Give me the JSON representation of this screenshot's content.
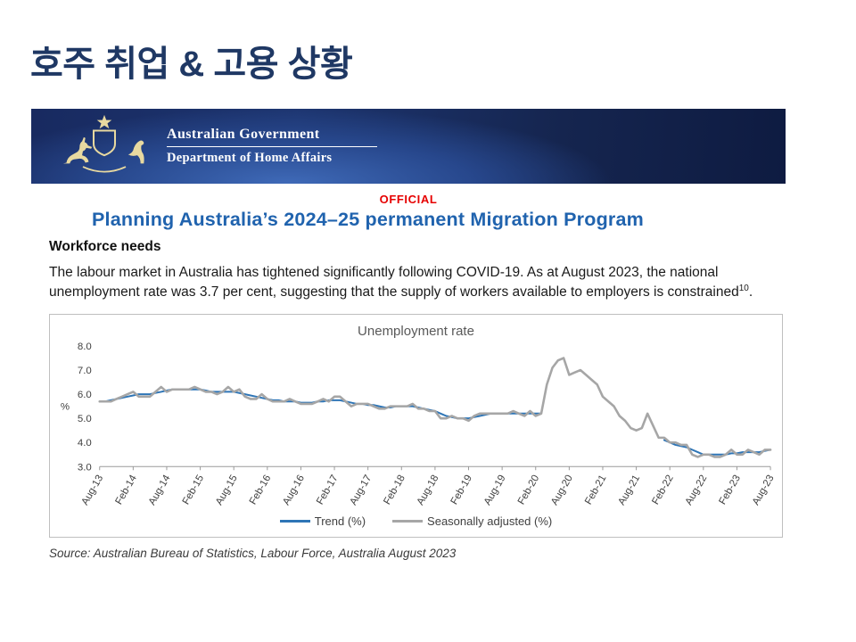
{
  "colors": {
    "title_navy": "#1F3864",
    "heading_blue": "#2063AE",
    "official_red": "#E60000",
    "banner_navy": "#16255A"
  },
  "page": {
    "title": "호주 취업 & 고용 상황"
  },
  "banner": {
    "gov_title": "Australian Government",
    "dept_title": "Department of Home Affairs"
  },
  "doc": {
    "official_label": "OFFICIAL",
    "heading": "Planning Australia’s 2024–25 permanent Migration Program",
    "subheading": "Workforce needs",
    "body": "The labour market in Australia has tightened significantly following COVID-19. As at August 2023, the national unemployment rate was 3.7 per cent, suggesting that the supply of workers available to employers is constrained",
    "footnote_marker": "10",
    "body_end": ".",
    "source": "Source: Australian Bureau of Statistics, Labour Force, Australia August 2023"
  },
  "chart_data": {
    "type": "line",
    "title": "Unemployment rate",
    "ylabel": "%",
    "ylim": [
      3.0,
      8.0
    ],
    "yticks": [
      3,
      4,
      5,
      6,
      7,
      8
    ],
    "grid": false,
    "legend_position": "bottom",
    "x_unit": "month",
    "tick_every_months": 6,
    "tick_labels": [
      "Aug-13",
      "Feb-14",
      "Aug-14",
      "Feb-15",
      "Aug-15",
      "Feb-16",
      "Aug-16",
      "Feb-17",
      "Aug-17",
      "Feb-18",
      "Aug-18",
      "Feb-19",
      "Aug-19",
      "Feb-20",
      "Aug-20",
      "Feb-21",
      "Aug-21",
      "Feb-22",
      "Aug-22",
      "Feb-23",
      "Aug-23"
    ],
    "series": [
      {
        "name": "Trend (%)",
        "color": "#2E75B6",
        "width": 2,
        "values": [
          5.7,
          5.7,
          5.75,
          5.8,
          5.85,
          5.9,
          5.95,
          6.0,
          6.0,
          6.0,
          6.05,
          6.1,
          6.15,
          6.2,
          6.2,
          6.2,
          6.2,
          6.2,
          6.2,
          6.15,
          6.1,
          6.1,
          6.1,
          6.1,
          6.1,
          6.05,
          6.0,
          5.95,
          5.9,
          5.85,
          5.8,
          5.75,
          5.75,
          5.7,
          5.7,
          5.7,
          5.65,
          5.65,
          5.65,
          5.7,
          5.7,
          5.75,
          5.75,
          5.75,
          5.7,
          5.65,
          5.6,
          5.6,
          5.55,
          5.55,
          5.5,
          5.45,
          5.45,
          5.5,
          5.5,
          5.5,
          5.5,
          5.45,
          5.4,
          5.35,
          5.3,
          5.2,
          5.1,
          5.05,
          5.0,
          5.0,
          5.0,
          5.05,
          5.1,
          5.15,
          5.2,
          5.2,
          5.2,
          5.2,
          5.2,
          5.2,
          5.2,
          5.2,
          5.2,
          5.2,
          null,
          null,
          null,
          null,
          null,
          null,
          null,
          null,
          null,
          null,
          null,
          null,
          null,
          null,
          null,
          null,
          null,
          null,
          null,
          null,
          null,
          4.1,
          4.0,
          3.9,
          3.85,
          3.8,
          3.7,
          3.6,
          3.5,
          3.5,
          3.5,
          3.5,
          3.5,
          3.55,
          3.55,
          3.6,
          3.6,
          3.6,
          3.6,
          3.65,
          3.7
        ]
      },
      {
        "name": "Seasonally adjusted (%)",
        "color": "#A6A6A6",
        "width": 2.6,
        "values": [
          5.7,
          5.7,
          5.7,
          5.8,
          5.9,
          6.0,
          6.1,
          5.9,
          5.9,
          5.9,
          6.1,
          6.3,
          6.1,
          6.2,
          6.2,
          6.2,
          6.2,
          6.3,
          6.2,
          6.1,
          6.1,
          6.0,
          6.1,
          6.3,
          6.1,
          6.2,
          5.9,
          5.8,
          5.8,
          6.0,
          5.8,
          5.7,
          5.7,
          5.7,
          5.8,
          5.7,
          5.6,
          5.6,
          5.6,
          5.7,
          5.8,
          5.7,
          5.9,
          5.9,
          5.7,
          5.5,
          5.6,
          5.6,
          5.6,
          5.5,
          5.4,
          5.4,
          5.5,
          5.5,
          5.5,
          5.5,
          5.6,
          5.4,
          5.4,
          5.3,
          5.3,
          5.0,
          5.0,
          5.1,
          5.0,
          5.0,
          4.9,
          5.1,
          5.2,
          5.2,
          5.2,
          5.2,
          5.2,
          5.2,
          5.3,
          5.2,
          5.1,
          5.3,
          5.1,
          5.2,
          6.4,
          7.1,
          7.4,
          7.5,
          6.8,
          6.9,
          7.0,
          6.8,
          6.6,
          6.4,
          5.9,
          5.7,
          5.5,
          5.1,
          4.9,
          4.6,
          4.5,
          4.6,
          5.2,
          4.7,
          4.2,
          4.2,
          4.0,
          4.0,
          3.9,
          3.9,
          3.5,
          3.4,
          3.5,
          3.5,
          3.4,
          3.4,
          3.5,
          3.7,
          3.5,
          3.5,
          3.7,
          3.6,
          3.5,
          3.7,
          3.7
        ]
      }
    ]
  }
}
